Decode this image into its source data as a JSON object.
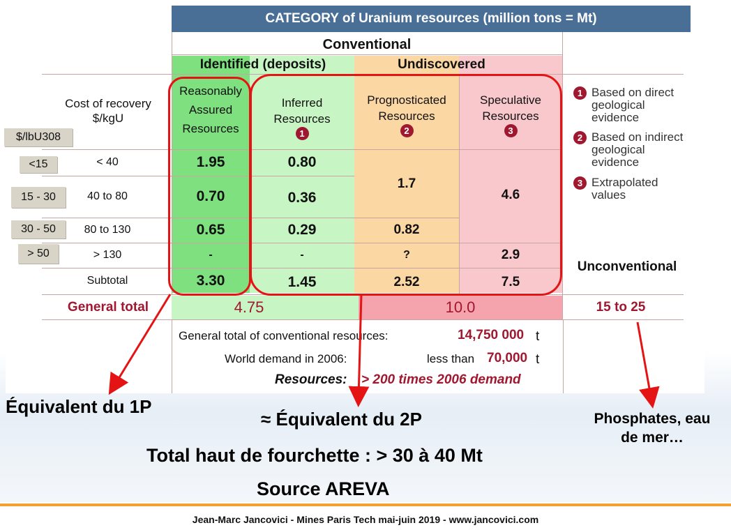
{
  "title": "CATEGORY of Uranium resources (million tons = Mt)",
  "conventional_label": "Conventional",
  "identified_label": "Identified (deposits)",
  "undiscovered_label": "Undiscovered",
  "cost_label_1": "Cost of recovery",
  "cost_label_2": "$/kgU",
  "lb_label": "$/lbU308",
  "columns": {
    "reasonably_1": "Reasonably",
    "reasonably_2": "Assured",
    "reasonably_3": "Resources",
    "inferred_1": "Inferred",
    "inferred_2": "Resources",
    "inferred_num": "1",
    "prognosticated_1": "Prognosticated",
    "prognosticated_2": "Resources",
    "prognosticated_num": "2",
    "speculative_1": "Speculative",
    "speculative_2": "Resources",
    "speculative_num": "3"
  },
  "rows": [
    {
      "lb": "<15",
      "kg": "< 40",
      "ra": "1.95",
      "inf": "0.80"
    },
    {
      "lb": "15 - 30",
      "kg": "40 to 80",
      "ra": "0.70",
      "inf": "0.36"
    },
    {
      "lb": "30 - 50",
      "kg": "80 to 130",
      "ra": "0.65",
      "inf": "0.29"
    },
    {
      "lb": "> 50",
      "kg": "> 130",
      "ra": "-",
      "inf": "-"
    }
  ],
  "prog_values": {
    "merged": "1.7",
    "r3": "0.82",
    "r4": "?",
    "subtotal": "2.52"
  },
  "spec_values": {
    "merged": "4.6",
    "r4": "2.9",
    "subtotal": "7.5"
  },
  "subtotal_label": "Subtotal",
  "subtotal_ra": "3.30",
  "subtotal_inf": "1.45",
  "general_total_label": "General total",
  "general_total_identified": "4.75",
  "general_total_undiscovered": "10.0",
  "general_total_unconv": "15 to 25",
  "unconventional_label": "Unconventional",
  "legend": [
    {
      "num": "1",
      "line1": "Based on direct",
      "line2": "geological",
      "line3": "evidence"
    },
    {
      "num": "2",
      "line1": "Based on indirect",
      "line2": "geological",
      "line3": "evidence"
    },
    {
      "num": "3",
      "line1": "Extrapolated",
      "line2": "values",
      "line3": ""
    }
  ],
  "summary": {
    "conv_label": "General total of conventional resources:",
    "conv_value": "14,750 000",
    "conv_unit": "t",
    "demand_label": "World demand in 2006:",
    "demand_prefix": "less than",
    "demand_value": "70,000",
    "demand_unit": "t",
    "resources_label": "Resources:",
    "resources_value": "> 200 times 2006 demand"
  },
  "annotations": {
    "equiv_1p": "Équivalent du 1P",
    "equiv_2p": "≈ Équivalent du 2P",
    "phosphates_1": "Phosphates, eau",
    "phosphates_2": "de mer…",
    "total_haut": "Total haut de fourchette : > 30 à 40 Mt",
    "source": "Source AREVA"
  },
  "footer": "Jean-Marc Jancovici - Mines Paris Tech mai-juin 2019 - www.jancovici.com",
  "colors": {
    "header": "#4a6f97",
    "identified_green": "#7ee07e",
    "inferred_green": "#c8f5c4",
    "prognosticated_orange": "#fbd7a4",
    "speculative_pink": "#f8c8cc",
    "maroon": "#a01830",
    "red_outline": "#e41414",
    "footer_line": "#f2a031"
  }
}
